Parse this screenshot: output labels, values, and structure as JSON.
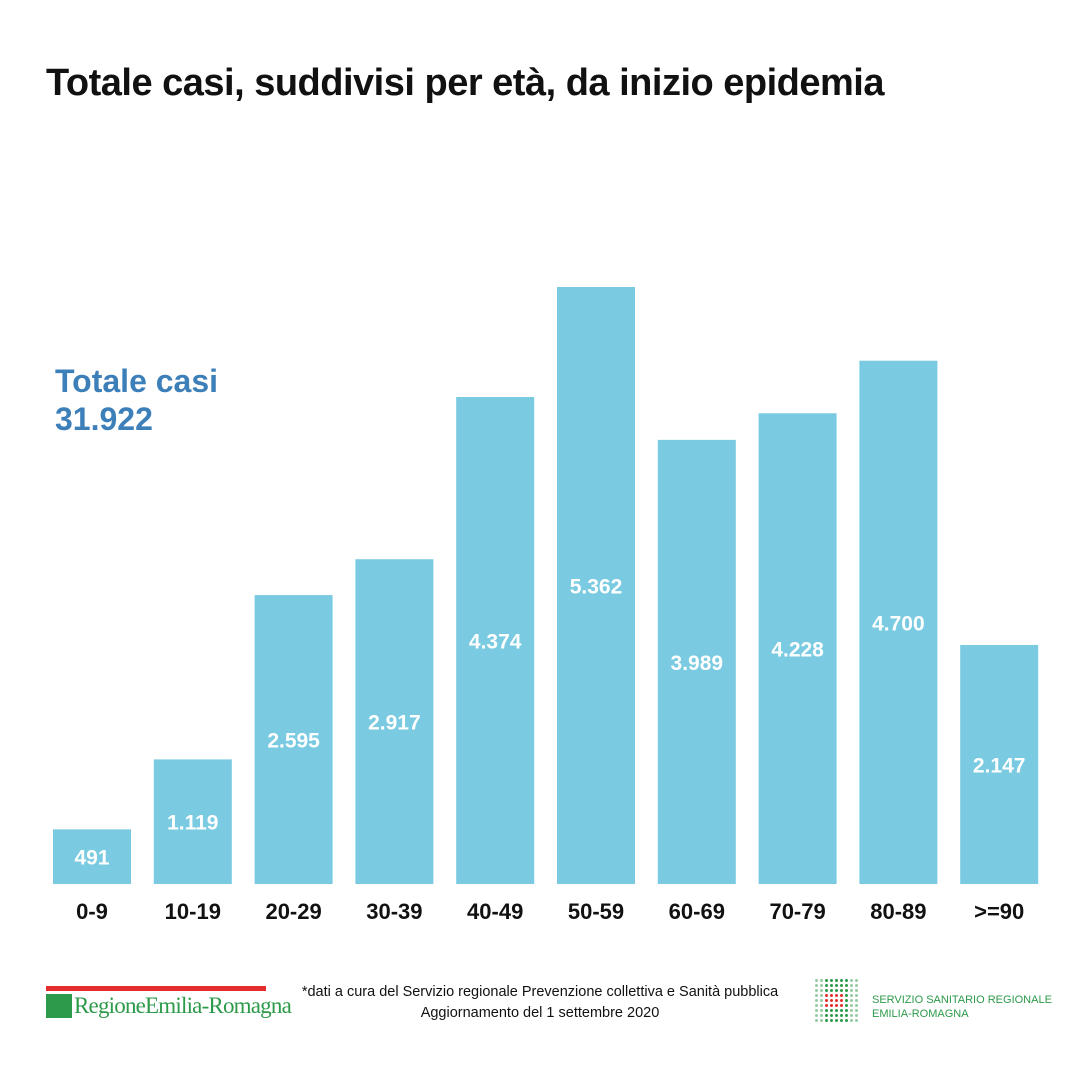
{
  "title": "Totale casi, suddivisi per età, da inizio epidemia",
  "total": {
    "label": "Totale casi",
    "value": "31.922"
  },
  "chart_data": {
    "type": "bar",
    "title": "Totale casi, suddivisi per età, da inizio epidemia",
    "xlabel": "",
    "ylabel": "",
    "categories": [
      "0-9",
      "10-19",
      "20-29",
      "30-39",
      "40-49",
      "50-59",
      "60-69",
      "70-79",
      "80-89",
      ">=90"
    ],
    "values": [
      491,
      1119,
      2595,
      2917,
      4374,
      5362,
      3989,
      4228,
      4700,
      2147
    ],
    "value_labels": [
      "491",
      "1.119",
      "2.595",
      "2.917",
      "4.374",
      "5.362",
      "3.989",
      "4.228",
      "4.700",
      "2.147"
    ],
    "ylim": [
      0,
      5362
    ],
    "grid": false,
    "bar_color": "#7acbe1"
  },
  "footer": {
    "logo_left": "RegioneEmilia-Romagna",
    "note_line1": "*dati a cura del Servizio regionale Prevenzione collettiva e Sanità pubblica",
    "note_line2": "Aggiornamento del 1 settembre 2020",
    "logo_right_line1": "SERVIZIO SANITARIO REGIONALE",
    "logo_right_line2": "EMILIA-ROMAGNA"
  },
  "colors": {
    "accent": "#3d80b9",
    "bar": "#7acbe1",
    "brand_green": "#2c9a4a",
    "brand_red": "#e52d2d"
  }
}
